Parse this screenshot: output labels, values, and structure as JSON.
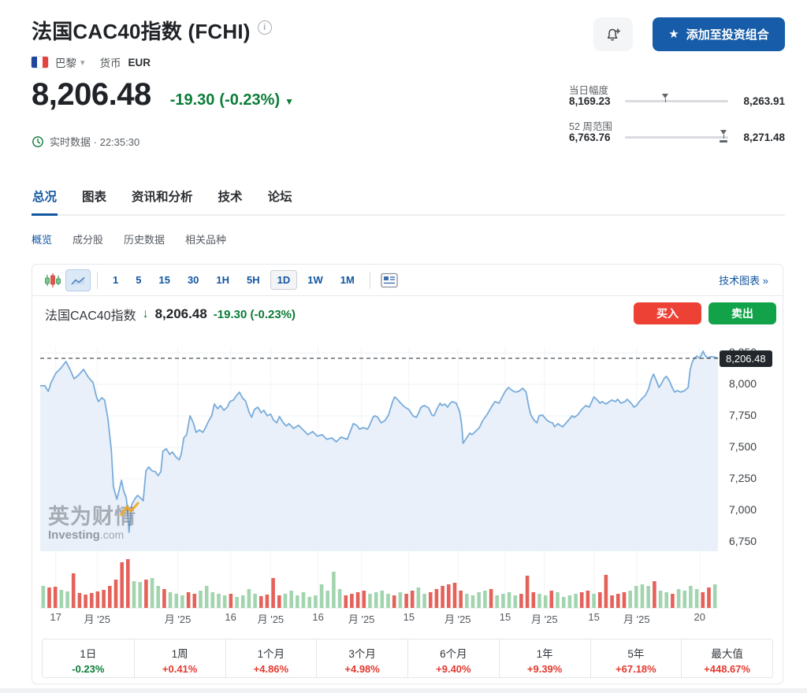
{
  "header": {
    "title": "法国CAC40指数 (FCHI)",
    "info_icon": "i",
    "portfolio_button": {
      "icon": "★",
      "label": "添加至投资组合"
    },
    "market": {
      "flag": "france-flag",
      "exchange": "巴黎",
      "caret": "▾",
      "currency_label": "货币",
      "currency_value": "EUR"
    }
  },
  "quote": {
    "price": "8,206.48",
    "change": "-19.30",
    "change_pct": "(-0.23%)",
    "direction_icon": "▼",
    "status_label": "实时数据",
    "separator": "·",
    "time": "22:35:30"
  },
  "ranges": {
    "day": {
      "label": "当日幅度",
      "low": "8,169.23",
      "high": "8,263.91",
      "position_pct": 39.3
    },
    "week52": {
      "label": "52 周范围",
      "low": "6,763.76",
      "high": "8,271.48",
      "position_pct": 95.7
    }
  },
  "tabs": {
    "main": [
      {
        "key": "tab-overview",
        "label": "总况",
        "active": true
      },
      {
        "key": "tab-chart",
        "label": "图表",
        "active": false
      },
      {
        "key": "tab-news-analysis",
        "label": "资讯和分析",
        "active": false
      },
      {
        "key": "tab-technical",
        "label": "技术",
        "active": false
      },
      {
        "key": "tab-forum",
        "label": "论坛",
        "active": false
      }
    ],
    "sub": [
      {
        "key": "subtab-overview",
        "label": "概览",
        "active": true
      },
      {
        "key": "subtab-components",
        "label": "成分股",
        "active": false
      },
      {
        "key": "subtab-historical-data",
        "label": "历史数据",
        "active": false
      },
      {
        "key": "subtab-related",
        "label": "相关品种",
        "active": false
      }
    ]
  },
  "toolbar": {
    "chart_type_icons": [
      "candlestick-icon",
      "area-chart-icon"
    ],
    "intervals": [
      "1",
      "5",
      "15",
      "30",
      "1H",
      "5H",
      "1D",
      "1W",
      "1M"
    ],
    "active_interval": "1D",
    "layout_icon": "news-layout-icon",
    "tech_chart_link": "技术图表 »"
  },
  "chart_header": {
    "name": "法国CAC40指数",
    "arrow": "↓",
    "price": "8,206.48",
    "change": "-19.30 (-0.23%)",
    "buy_label": "买入",
    "sell_label": "卖出"
  },
  "chart_data": {
    "type": "area",
    "instrument": "法国CAC40指数 (FCHI)",
    "interval": "1D",
    "last_price": 8206.48,
    "last_price_label": "8,206.48",
    "legend_position": "none",
    "grid": true,
    "y_axis": {
      "top_value": 8362.5,
      "bottom_value": 6675,
      "ticks": [
        {
          "label": "8,250",
          "value": 8250
        },
        {
          "label": "8,000",
          "value": 8000
        },
        {
          "label": "7,750",
          "value": 7750
        },
        {
          "label": "7,500",
          "value": 7500
        },
        {
          "label": "7,250",
          "value": 7250
        },
        {
          "label": "7,000",
          "value": 7000
        },
        {
          "label": "6,750",
          "value": 6750
        }
      ]
    },
    "x_axis": {
      "ticks": [
        {
          "label": "17",
          "pos": 0.023
        },
        {
          "label": "月 '25",
          "pos": 0.084
        },
        {
          "label": "月 '25",
          "pos": 0.203
        },
        {
          "label": "16",
          "pos": 0.281
        },
        {
          "label": "月 '25",
          "pos": 0.34
        },
        {
          "label": "16",
          "pos": 0.41
        },
        {
          "label": "月 '25",
          "pos": 0.474
        },
        {
          "label": "15",
          "pos": 0.544
        },
        {
          "label": "月 '25",
          "pos": 0.616
        },
        {
          "label": "15",
          "pos": 0.686
        },
        {
          "label": "月 '25",
          "pos": 0.744
        },
        {
          "label": "15",
          "pos": 0.817
        },
        {
          "label": "月 '25",
          "pos": 0.88
        },
        {
          "label": "20",
          "pos": 0.973
        }
      ]
    },
    "price_series": [
      [
        0.0,
        7988
      ],
      [
        0.007,
        7988
      ],
      [
        0.012,
        7944
      ],
      [
        0.016,
        8013
      ],
      [
        0.023,
        8088
      ],
      [
        0.03,
        8125
      ],
      [
        0.038,
        8181
      ],
      [
        0.044,
        8119
      ],
      [
        0.05,
        8044
      ],
      [
        0.057,
        8075
      ],
      [
        0.064,
        8119
      ],
      [
        0.071,
        8056
      ],
      [
        0.078,
        8013
      ],
      [
        0.083,
        7900
      ],
      [
        0.086,
        7863
      ],
      [
        0.091,
        7894
      ],
      [
        0.095,
        7875
      ],
      [
        0.1,
        7725
      ],
      [
        0.105,
        7475
      ],
      [
        0.108,
        7188
      ],
      [
        0.113,
        7088
      ],
      [
        0.116,
        7150
      ],
      [
        0.12,
        7238
      ],
      [
        0.123,
        7156
      ],
      [
        0.127,
        7100
      ],
      [
        0.129,
        7000
      ],
      [
        0.131,
        6825
      ],
      [
        0.135,
        7044
      ],
      [
        0.14,
        7094
      ],
      [
        0.144,
        7119
      ],
      [
        0.149,
        7094
      ],
      [
        0.152,
        7075
      ],
      [
        0.156,
        7313
      ],
      [
        0.16,
        7344
      ],
      [
        0.165,
        7313
      ],
      [
        0.17,
        7306
      ],
      [
        0.174,
        7275
      ],
      [
        0.178,
        7306
      ],
      [
        0.181,
        7469
      ],
      [
        0.186,
        7488
      ],
      [
        0.191,
        7444
      ],
      [
        0.195,
        7463
      ],
      [
        0.2,
        7425
      ],
      [
        0.205,
        7400
      ],
      [
        0.208,
        7444
      ],
      [
        0.212,
        7575
      ],
      [
        0.216,
        7600
      ],
      [
        0.221,
        7750
      ],
      [
        0.226,
        7694
      ],
      [
        0.23,
        7619
      ],
      [
        0.235,
        7638
      ],
      [
        0.24,
        7619
      ],
      [
        0.244,
        7656
      ],
      [
        0.249,
        7713
      ],
      [
        0.253,
        7750
      ],
      [
        0.257,
        7844
      ],
      [
        0.262,
        7806
      ],
      [
        0.266,
        7831
      ],
      [
        0.271,
        7794
      ],
      [
        0.276,
        7819
      ],
      [
        0.28,
        7863
      ],
      [
        0.285,
        7875
      ],
      [
        0.29,
        7913
      ],
      [
        0.294,
        7938
      ],
      [
        0.299,
        7888
      ],
      [
        0.303,
        7869
      ],
      [
        0.308,
        7781
      ],
      [
        0.312,
        7738
      ],
      [
        0.316,
        7800
      ],
      [
        0.321,
        7819
      ],
      [
        0.326,
        7775
      ],
      [
        0.33,
        7794
      ],
      [
        0.335,
        7750
      ],
      [
        0.34,
        7763
      ],
      [
        0.344,
        7719
      ],
      [
        0.349,
        7694
      ],
      [
        0.353,
        7744
      ],
      [
        0.358,
        7700
      ],
      [
        0.363,
        7669
      ],
      [
        0.367,
        7688
      ],
      [
        0.374,
        7650
      ],
      [
        0.381,
        7675
      ],
      [
        0.388,
        7638
      ],
      [
        0.395,
        7600
      ],
      [
        0.402,
        7625
      ],
      [
        0.409,
        7588
      ],
      [
        0.416,
        7600
      ],
      [
        0.423,
        7563
      ],
      [
        0.43,
        7575
      ],
      [
        0.437,
        7544
      ],
      [
        0.444,
        7581
      ],
      [
        0.453,
        7563
      ],
      [
        0.462,
        7688
      ],
      [
        0.467,
        7675
      ],
      [
        0.471,
        7644
      ],
      [
        0.477,
        7656
      ],
      [
        0.483,
        7644
      ],
      [
        0.486,
        7675
      ],
      [
        0.491,
        7738
      ],
      [
        0.494,
        7750
      ],
      [
        0.498,
        7738
      ],
      [
        0.503,
        7694
      ],
      [
        0.509,
        7713
      ],
      [
        0.514,
        7756
      ],
      [
        0.52,
        7863
      ],
      [
        0.523,
        7900
      ],
      [
        0.527,
        7881
      ],
      [
        0.533,
        7844
      ],
      [
        0.538,
        7819
      ],
      [
        0.544,
        7800
      ],
      [
        0.55,
        7750
      ],
      [
        0.555,
        7738
      ],
      [
        0.558,
        7769
      ],
      [
        0.562,
        7819
      ],
      [
        0.567,
        7831
      ],
      [
        0.573,
        7813
      ],
      [
        0.578,
        7756
      ],
      [
        0.581,
        7750
      ],
      [
        0.585,
        7800
      ],
      [
        0.59,
        7850
      ],
      [
        0.593,
        7831
      ],
      [
        0.597,
        7844
      ],
      [
        0.601,
        7819
      ],
      [
        0.605,
        7850
      ],
      [
        0.608,
        7863
      ],
      [
        0.614,
        7850
      ],
      [
        0.619,
        7781
      ],
      [
        0.622,
        7675
      ],
      [
        0.624,
        7531
      ],
      [
        0.63,
        7581
      ],
      [
        0.634,
        7613
      ],
      [
        0.637,
        7600
      ],
      [
        0.642,
        7625
      ],
      [
        0.648,
        7656
      ],
      [
        0.653,
        7713
      ],
      [
        0.659,
        7756
      ],
      [
        0.665,
        7813
      ],
      [
        0.671,
        7863
      ],
      [
        0.677,
        7850
      ],
      [
        0.683,
        7913
      ],
      [
        0.686,
        7944
      ],
      [
        0.691,
        7975
      ],
      [
        0.695,
        7956
      ],
      [
        0.701,
        7938
      ],
      [
        0.706,
        7944
      ],
      [
        0.712,
        7969
      ],
      [
        0.717,
        7938
      ],
      [
        0.721,
        7819
      ],
      [
        0.724,
        7756
      ],
      [
        0.729,
        7713
      ],
      [
        0.733,
        7694
      ],
      [
        0.736,
        7750
      ],
      [
        0.741,
        7756
      ],
      [
        0.744,
        7738
      ],
      [
        0.748,
        7713
      ],
      [
        0.752,
        7700
      ],
      [
        0.756,
        7694
      ],
      [
        0.759,
        7663
      ],
      [
        0.764,
        7688
      ],
      [
        0.767,
        7675
      ],
      [
        0.771,
        7663
      ],
      [
        0.776,
        7694
      ],
      [
        0.781,
        7725
      ],
      [
        0.785,
        7750
      ],
      [
        0.788,
        7738
      ],
      [
        0.793,
        7756
      ],
      [
        0.799,
        7800
      ],
      [
        0.805,
        7831
      ],
      [
        0.81,
        7819
      ],
      [
        0.814,
        7863
      ],
      [
        0.817,
        7900
      ],
      [
        0.822,
        7875
      ],
      [
        0.826,
        7850
      ],
      [
        0.829,
        7863
      ],
      [
        0.835,
        7844
      ],
      [
        0.84,
        7863
      ],
      [
        0.843,
        7875
      ],
      [
        0.849,
        7863
      ],
      [
        0.852,
        7881
      ],
      [
        0.857,
        7850
      ],
      [
        0.863,
        7863
      ],
      [
        0.866,
        7881
      ],
      [
        0.872,
        7850
      ],
      [
        0.876,
        7819
      ],
      [
        0.88,
        7831
      ],
      [
        0.884,
        7863
      ],
      [
        0.887,
        7881
      ],
      [
        0.893,
        7913
      ],
      [
        0.898,
        7969
      ],
      [
        0.901,
        8031
      ],
      [
        0.905,
        8081
      ],
      [
        0.909,
        8031
      ],
      [
        0.913,
        7975
      ],
      [
        0.916,
        8000
      ],
      [
        0.921,
        8050
      ],
      [
        0.924,
        8063
      ],
      [
        0.928,
        8031
      ],
      [
        0.933,
        7969
      ],
      [
        0.936,
        7938
      ],
      [
        0.94,
        7950
      ],
      [
        0.945,
        7938
      ],
      [
        0.951,
        7950
      ],
      [
        0.956,
        7975
      ],
      [
        0.959,
        8113
      ],
      [
        0.962,
        8175
      ],
      [
        0.965,
        8206
      ],
      [
        0.969,
        8225
      ],
      [
        0.973,
        8206
      ],
      [
        0.978,
        8263
      ],
      [
        0.98,
        8238
      ],
      [
        0.985,
        8206
      ],
      [
        0.988,
        8219
      ],
      [
        0.992,
        8219
      ],
      [
        0.997,
        8213
      ],
      [
        1.0,
        8206
      ]
    ],
    "volume_bars": [
      [
        28,
        "g"
      ],
      [
        26,
        "r"
      ],
      [
        27,
        "r"
      ],
      [
        23,
        "g"
      ],
      [
        21,
        "g"
      ],
      [
        44,
        "r"
      ],
      [
        19,
        "r"
      ],
      [
        17,
        "r"
      ],
      [
        19,
        "r"
      ],
      [
        21,
        "r"
      ],
      [
        23,
        "r"
      ],
      [
        28,
        "r"
      ],
      [
        36,
        "r"
      ],
      [
        58,
        "r"
      ],
      [
        62,
        "r"
      ],
      [
        34,
        "g"
      ],
      [
        33,
        "g"
      ],
      [
        36,
        "r"
      ],
      [
        38,
        "g"
      ],
      [
        28,
        "g"
      ],
      [
        24,
        "r"
      ],
      [
        20,
        "g"
      ],
      [
        18,
        "g"
      ],
      [
        16,
        "g"
      ],
      [
        20,
        "r"
      ],
      [
        18,
        "r"
      ],
      [
        22,
        "g"
      ],
      [
        28,
        "g"
      ],
      [
        20,
        "g"
      ],
      [
        18,
        "g"
      ],
      [
        16,
        "g"
      ],
      [
        18,
        "r"
      ],
      [
        14,
        "g"
      ],
      [
        16,
        "g"
      ],
      [
        24,
        "g"
      ],
      [
        18,
        "g"
      ],
      [
        15,
        "r"
      ],
      [
        17,
        "r"
      ],
      [
        38,
        "r"
      ],
      [
        16,
        "r"
      ],
      [
        18,
        "g"
      ],
      [
        22,
        "g"
      ],
      [
        16,
        "g"
      ],
      [
        20,
        "g"
      ],
      [
        14,
        "g"
      ],
      [
        16,
        "g"
      ],
      [
        30,
        "g"
      ],
      [
        22,
        "g"
      ],
      [
        46,
        "g"
      ],
      [
        24,
        "g"
      ],
      [
        16,
        "r"
      ],
      [
        18,
        "r"
      ],
      [
        20,
        "r"
      ],
      [
        22,
        "r"
      ],
      [
        18,
        "g"
      ],
      [
        20,
        "g"
      ],
      [
        22,
        "g"
      ],
      [
        18,
        "g"
      ],
      [
        16,
        "r"
      ],
      [
        20,
        "g"
      ],
      [
        18,
        "r"
      ],
      [
        22,
        "r"
      ],
      [
        26,
        "g"
      ],
      [
        18,
        "g"
      ],
      [
        20,
        "r"
      ],
      [
        24,
        "r"
      ],
      [
        28,
        "r"
      ],
      [
        30,
        "r"
      ],
      [
        32,
        "r"
      ],
      [
        22,
        "r"
      ],
      [
        18,
        "g"
      ],
      [
        16,
        "g"
      ],
      [
        20,
        "g"
      ],
      [
        22,
        "g"
      ],
      [
        24,
        "r"
      ],
      [
        16,
        "g"
      ],
      [
        18,
        "g"
      ],
      [
        20,
        "g"
      ],
      [
        16,
        "g"
      ],
      [
        18,
        "r"
      ],
      [
        41,
        "r"
      ],
      [
        20,
        "r"
      ],
      [
        18,
        "g"
      ],
      [
        16,
        "g"
      ],
      [
        22,
        "r"
      ],
      [
        20,
        "g"
      ],
      [
        14,
        "g"
      ],
      [
        16,
        "g"
      ],
      [
        18,
        "g"
      ],
      [
        20,
        "r"
      ],
      [
        22,
        "r"
      ],
      [
        18,
        "g"
      ],
      [
        20,
        "r"
      ],
      [
        42,
        "r"
      ],
      [
        16,
        "r"
      ],
      [
        18,
        "r"
      ],
      [
        20,
        "r"
      ],
      [
        22,
        "g"
      ],
      [
        28,
        "g"
      ],
      [
        30,
        "g"
      ],
      [
        28,
        "g"
      ],
      [
        34,
        "r"
      ],
      [
        22,
        "g"
      ],
      [
        20,
        "g"
      ],
      [
        18,
        "r"
      ],
      [
        24,
        "g"
      ],
      [
        22,
        "g"
      ],
      [
        28,
        "g"
      ],
      [
        24,
        "g"
      ],
      [
        20,
        "r"
      ],
      [
        26,
        "r"
      ],
      [
        30,
        "g"
      ]
    ],
    "watermark": {
      "line1": "英为财情",
      "line2": "Investing",
      "line2_suffix": ".com"
    }
  },
  "performance": {
    "items": [
      {
        "label": "1日",
        "value": "-0.23%",
        "direction": "down"
      },
      {
        "label": "1周",
        "value": "+0.41%",
        "direction": "up"
      },
      {
        "label": "1个月",
        "value": "+4.86%",
        "direction": "up"
      },
      {
        "label": "3个月",
        "value": "+4.98%",
        "direction": "up"
      },
      {
        "label": "6个月",
        "value": "+9.40%",
        "direction": "up"
      },
      {
        "label": "1年",
        "value": "+9.39%",
        "direction": "up"
      },
      {
        "label": "5年",
        "value": "+67.18%",
        "direction": "up"
      },
      {
        "label": "最大值",
        "value": "+448.67%",
        "direction": "up"
      }
    ]
  },
  "colors": {
    "link_blue": "#1256a0",
    "button_blue": "#175ca9",
    "down_green": "#0b7c38",
    "up_red": "#e23a2f",
    "buy_red": "#ee4135",
    "sell_green": "#12a34a",
    "line_blue": "#79acdb",
    "area_fill": "#e8eff8",
    "volume_red": "#e4625a",
    "volume_green": "#a2d5af",
    "tag_bg": "#23272b"
  }
}
